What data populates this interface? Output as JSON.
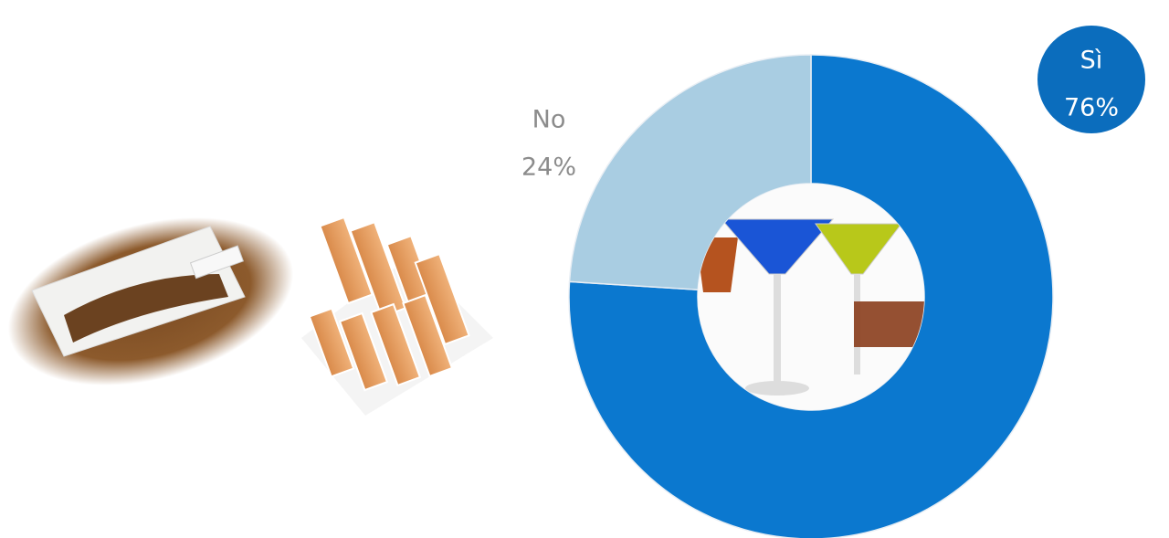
{
  "chart_data": {
    "type": "donut",
    "categories": [
      "Sì",
      "No"
    ],
    "values": [
      76,
      24
    ],
    "value_labels": [
      "76%",
      "24%"
    ],
    "colors": [
      "#0b78cf",
      "#a9cde2"
    ]
  }
}
